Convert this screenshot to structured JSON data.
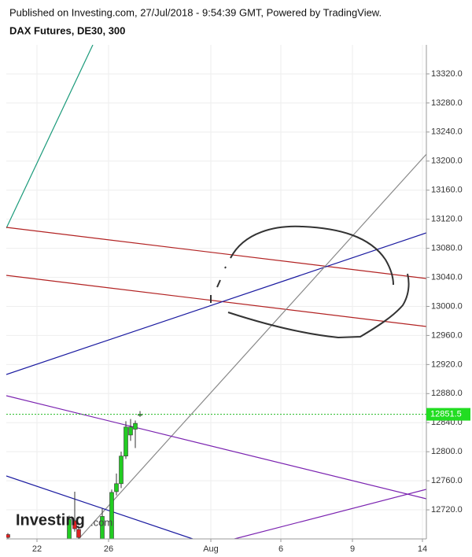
{
  "header": {
    "published": "Published on Investing.com, 27/Jul/2018 - 9:54:39 GMT, Powered by TradingView.",
    "symbol": "DAX Futures, DE30, 300"
  },
  "chart_data": {
    "type": "candlestick",
    "categories": [
      null,
      null,
      null,
      null,
      null,
      null,
      null,
      null,
      null,
      null,
      null,
      null
    ],
    "open": [
      12686,
      12680,
      12705,
      12693,
      12680,
      12680,
      12745,
      12756,
      12794,
      12823,
      12831,
      12850
    ],
    "high": [
      12688,
      12712,
      12745,
      12696,
      12722,
      12748,
      12770,
      12800,
      12842,
      12845,
      12843,
      12856
    ],
    "low": [
      12680,
      12680,
      12690,
      12680,
      12680,
      12680,
      12740,
      12750,
      12790,
      12815,
      12805,
      12848
    ],
    "close": [
      12682,
      12707,
      12694,
      12682,
      12711,
      12744,
      12756,
      12794,
      12834,
      12834,
      12839,
      12851.5
    ],
    "up_color": "#22cc22",
    "down_color": "#dd2222",
    "ylim": [
      12680,
      13360
    ],
    "yticks": [
      {
        "value": 12720,
        "label": "12720.0"
      },
      {
        "value": 12760,
        "label": "12760.0"
      },
      {
        "value": 12800,
        "label": "12800.0"
      },
      {
        "value": 12840,
        "label": "12840.0"
      },
      {
        "value": 12880,
        "label": "12880.0"
      },
      {
        "value": 12920,
        "label": "12920.0"
      },
      {
        "value": 12960,
        "label": "12960.0"
      },
      {
        "value": 13000,
        "label": "13000.0"
      },
      {
        "value": 13040,
        "label": "13040.0"
      },
      {
        "value": 13080,
        "label": "13080.0"
      },
      {
        "value": 13120,
        "label": "13120.0"
      },
      {
        "value": 13160,
        "label": "13160.0"
      },
      {
        "value": 13200,
        "label": "13200.0"
      },
      {
        "value": 13240,
        "label": "13240.0"
      },
      {
        "value": 13280,
        "label": "13280.0"
      },
      {
        "value": 13320,
        "label": "13320.0"
      }
    ],
    "xticks": [
      "22",
      "26",
      "Aug",
      "6",
      "9",
      "14"
    ],
    "last_price": 12851.5,
    "grid": true
  },
  "logo": {
    "name": "Investing",
    "suffix": ".com"
  }
}
